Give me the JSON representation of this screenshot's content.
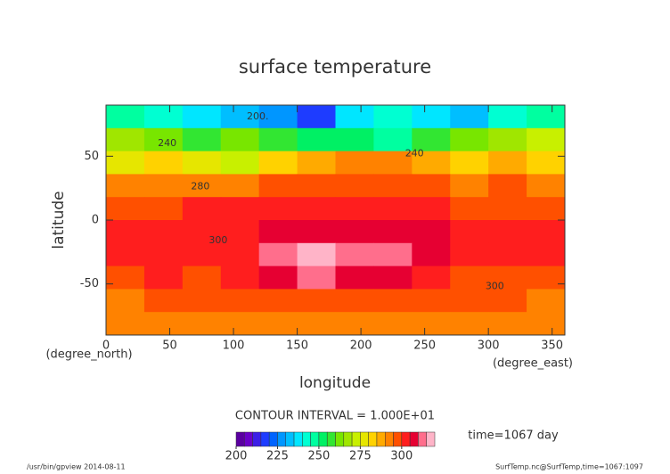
{
  "chart_data": {
    "type": "contour",
    "title": "surface temperature",
    "x_label": "longitude",
    "y_label": "latitude",
    "x_unit": "(degree_east)",
    "y_unit": "(degree_north)",
    "xlim": [
      0,
      360
    ],
    "ylim": [
      -90,
      90
    ],
    "xticks": [
      0,
      50,
      100,
      150,
      200,
      250,
      300,
      350
    ],
    "yticks": [
      -50,
      0,
      50
    ],
    "x": [
      15,
      45,
      75,
      105,
      135,
      165,
      195,
      225,
      255,
      285,
      315,
      345
    ],
    "y": [
      81,
      63,
      45,
      27,
      9,
      -9,
      -27,
      -45,
      -63,
      -81
    ],
    "z": [
      [
        245,
        240,
        235,
        230,
        225,
        215,
        235,
        240,
        238,
        230,
        240,
        245
      ],
      [
        265,
        262,
        258,
        260,
        255,
        250,
        250,
        248,
        255,
        262,
        265,
        270
      ],
      [
        275,
        282,
        278,
        272,
        282,
        287,
        290,
        290,
        285,
        282,
        285,
        282
      ],
      [
        292,
        290,
        292,
        290,
        295,
        297,
        298,
        297,
        295,
        293,
        295,
        292
      ],
      [
        297,
        298,
        300,
        302,
        303,
        304,
        304,
        303,
        301,
        299,
        299,
        298
      ],
      [
        301,
        302,
        303,
        303,
        306,
        308,
        309,
        308,
        305,
        300,
        301,
        302
      ],
      [
        302,
        303,
        302,
        304,
        311,
        315,
        314,
        312,
        306,
        302,
        302,
        303
      ],
      [
        298,
        300,
        299,
        301,
        305,
        310,
        309,
        306,
        302,
        299,
        298,
        298
      ],
      [
        293,
        295,
        296,
        296,
        297,
        298,
        298,
        298,
        296,
        295,
        295,
        294
      ],
      [
        290,
        290,
        292,
        293,
        294,
        294,
        294,
        293,
        292,
        291,
        290,
        290
      ]
    ],
    "contour_labels": [
      {
        "text": "200.",
        "x": 119,
        "y": 81
      },
      {
        "text": "240",
        "x": 48,
        "y": 60
      },
      {
        "text": "240",
        "x": 242,
        "y": 52
      },
      {
        "text": "280",
        "x": 74,
        "y": 26
      },
      {
        "text": "300",
        "x": 88,
        "y": -16
      },
      {
        "text": "300",
        "x": 305,
        "y": -52
      }
    ],
    "contour_interval": "CONTOUR INTERVAL = 1.000E+01",
    "time_label": "time=1067 day",
    "colorbar": {
      "range": [
        200,
        320
      ],
      "step": 5,
      "ticks": [
        200,
        225,
        250,
        275,
        300
      ],
      "colors": [
        "#5a00a0",
        "#6a00c8",
        "#3c1ee6",
        "#1e3cff",
        "#0064ff",
        "#0096ff",
        "#00beff",
        "#00e6ff",
        "#00ffd2",
        "#00ffa0",
        "#00f064",
        "#32e632",
        "#78e600",
        "#a0e600",
        "#c8f000",
        "#e6e600",
        "#ffd200",
        "#ffaa00",
        "#ff8200",
        "#ff5000",
        "#ff1e1e",
        "#e60032",
        "#ff6e8c",
        "#ffb4c8"
      ]
    },
    "footer_left": "/usr/bin/gpview  2014-08-11",
    "footer_right": "SurfTemp.nc@SurfTemp,time=1067:1097"
  }
}
